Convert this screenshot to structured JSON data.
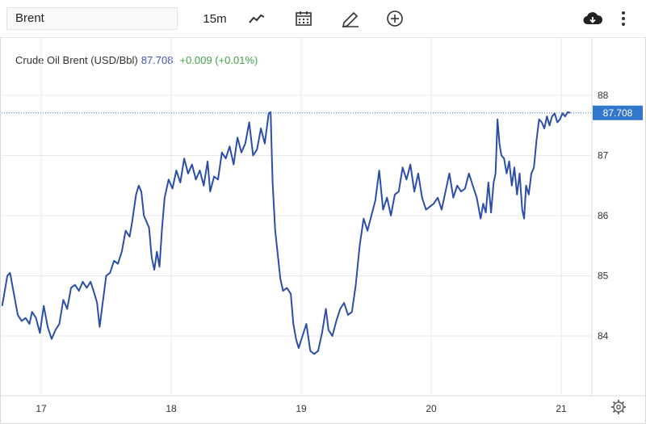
{
  "toolbar": {
    "symbol": "Brent",
    "interval": "15m",
    "icons": [
      "line-chart-icon",
      "calendar-icon",
      "draw-pencil-icon",
      "add-circle-icon",
      "download-cloud-icon",
      "more-vertical-icon",
      "settings-gear-icon"
    ]
  },
  "legend": {
    "name": "Crude Oil Brent (USD/Bbl)",
    "price": "87.708",
    "change": "+0.009 (+0.01%)"
  },
  "colors": {
    "line": "#2b4ea8",
    "price_tag": "#3377cc",
    "change_up": "#43a047",
    "grid": "#e9e9e9"
  },
  "chart_data": {
    "type": "line",
    "title": "Crude Oil Brent (USD/Bbl)",
    "xlabel": "",
    "ylabel": "",
    "x_ticks": [
      "17",
      "18",
      "19",
      "20",
      "21"
    ],
    "y_ticks": [
      "84",
      "85",
      "86",
      "87",
      "88"
    ],
    "ylim": [
      83.35,
      88.25
    ],
    "xlim": [
      16.7,
      21.25
    ],
    "last_price": "87.708",
    "grid": true,
    "series": [
      {
        "values": [
          [
            16.7,
            84.5
          ],
          [
            16.74,
            85.0
          ],
          [
            16.76,
            85.05
          ],
          [
            16.79,
            84.7
          ],
          [
            16.82,
            84.35
          ],
          [
            16.85,
            84.25
          ],
          [
            16.88,
            84.3
          ],
          [
            16.91,
            84.2
          ],
          [
            16.93,
            84.4
          ],
          [
            16.96,
            84.3
          ],
          [
            16.99,
            84.05
          ],
          [
            17.02,
            84.5
          ],
          [
            17.05,
            84.15
          ],
          [
            17.08,
            83.95
          ],
          [
            17.11,
            84.1
          ],
          [
            17.14,
            84.2
          ],
          [
            17.17,
            84.6
          ],
          [
            17.2,
            84.45
          ],
          [
            17.23,
            84.8
          ],
          [
            17.26,
            84.85
          ],
          [
            17.29,
            84.75
          ],
          [
            17.32,
            84.9
          ],
          [
            17.35,
            84.8
          ],
          [
            17.38,
            84.9
          ],
          [
            17.41,
            84.7
          ],
          [
            17.43,
            84.55
          ],
          [
            17.45,
            84.15
          ],
          [
            17.47,
            84.5
          ],
          [
            17.5,
            85.0
          ],
          [
            17.53,
            85.05
          ],
          [
            17.56,
            85.25
          ],
          [
            17.59,
            85.2
          ],
          [
            17.62,
            85.4
          ],
          [
            17.65,
            85.75
          ],
          [
            17.68,
            85.65
          ],
          [
            17.7,
            85.9
          ],
          [
            17.73,
            86.35
          ],
          [
            17.75,
            86.5
          ],
          [
            17.77,
            86.4
          ],
          [
            17.79,
            86.0
          ],
          [
            17.81,
            85.9
          ],
          [
            17.83,
            85.8
          ],
          [
            17.85,
            85.3
          ],
          [
            17.87,
            85.1
          ],
          [
            17.89,
            85.4
          ],
          [
            17.91,
            85.15
          ],
          [
            17.93,
            85.8
          ],
          [
            17.95,
            86.3
          ],
          [
            17.98,
            86.6
          ],
          [
            18.01,
            86.45
          ],
          [
            18.04,
            86.75
          ],
          [
            18.07,
            86.55
          ],
          [
            18.1,
            86.95
          ],
          [
            18.13,
            86.7
          ],
          [
            18.16,
            86.85
          ],
          [
            18.19,
            86.6
          ],
          [
            18.22,
            86.75
          ],
          [
            18.25,
            86.5
          ],
          [
            18.28,
            86.9
          ],
          [
            18.3,
            86.4
          ],
          [
            18.33,
            86.65
          ],
          [
            18.36,
            86.6
          ],
          [
            18.39,
            87.05
          ],
          [
            18.42,
            86.95
          ],
          [
            18.45,
            87.15
          ],
          [
            18.48,
            86.85
          ],
          [
            18.51,
            87.3
          ],
          [
            18.54,
            87.05
          ],
          [
            18.57,
            87.2
          ],
          [
            18.6,
            87.55
          ],
          [
            18.63,
            87.0
          ],
          [
            18.66,
            87.1
          ],
          [
            18.69,
            87.45
          ],
          [
            18.72,
            87.2
          ],
          [
            18.75,
            87.7
          ],
          [
            18.765,
            87.72
          ],
          [
            18.77,
            87.3
          ],
          [
            18.78,
            86.55
          ],
          [
            18.8,
            85.75
          ],
          [
            18.82,
            85.35
          ],
          [
            18.84,
            84.95
          ],
          [
            18.86,
            84.75
          ],
          [
            18.89,
            84.8
          ],
          [
            18.92,
            84.7
          ],
          [
            18.94,
            84.2
          ],
          [
            18.96,
            83.95
          ],
          [
            18.98,
            83.8
          ],
          [
            19.01,
            84.0
          ],
          [
            19.04,
            84.2
          ],
          [
            19.07,
            83.75
          ],
          [
            19.1,
            83.7
          ],
          [
            19.13,
            83.75
          ],
          [
            19.16,
            84.05
          ],
          [
            19.19,
            84.45
          ],
          [
            19.21,
            84.1
          ],
          [
            19.24,
            84.0
          ],
          [
            19.27,
            84.25
          ],
          [
            19.3,
            84.45
          ],
          [
            19.33,
            84.55
          ],
          [
            19.36,
            84.35
          ],
          [
            19.39,
            84.4
          ],
          [
            19.42,
            84.85
          ],
          [
            19.45,
            85.5
          ],
          [
            19.48,
            85.95
          ],
          [
            19.51,
            85.75
          ],
          [
            19.54,
            86.0
          ],
          [
            19.57,
            86.25
          ],
          [
            19.6,
            86.75
          ],
          [
            19.63,
            86.1
          ],
          [
            19.66,
            86.3
          ],
          [
            19.69,
            86.0
          ],
          [
            19.72,
            86.35
          ],
          [
            19.75,
            86.4
          ],
          [
            19.78,
            86.8
          ],
          [
            19.81,
            86.6
          ],
          [
            19.84,
            86.85
          ],
          [
            19.87,
            86.4
          ],
          [
            19.9,
            86.7
          ],
          [
            19.93,
            86.3
          ],
          [
            19.96,
            86.1
          ],
          [
            19.99,
            86.15
          ],
          [
            20.02,
            86.2
          ],
          [
            20.05,
            86.3
          ],
          [
            20.08,
            86.1
          ],
          [
            20.11,
            86.4
          ],
          [
            20.14,
            86.7
          ],
          [
            20.17,
            86.3
          ],
          [
            20.2,
            86.5
          ],
          [
            20.23,
            86.4
          ],
          [
            20.26,
            86.45
          ],
          [
            20.29,
            86.7
          ],
          [
            20.32,
            86.5
          ],
          [
            20.35,
            86.3
          ],
          [
            20.38,
            85.95
          ],
          [
            20.4,
            86.2
          ],
          [
            20.42,
            86.05
          ],
          [
            20.44,
            86.55
          ],
          [
            20.46,
            86.05
          ],
          [
            20.48,
            86.55
          ],
          [
            20.495,
            86.7
          ],
          [
            20.51,
            87.6
          ],
          [
            20.525,
            87.2
          ],
          [
            20.54,
            87.0
          ],
          [
            20.56,
            86.95
          ],
          [
            20.58,
            86.7
          ],
          [
            20.6,
            86.9
          ],
          [
            20.62,
            86.5
          ],
          [
            20.64,
            86.8
          ],
          [
            20.66,
            86.35
          ],
          [
            20.68,
            86.7
          ],
          [
            20.7,
            86.1
          ],
          [
            20.715,
            85.95
          ],
          [
            20.73,
            86.5
          ],
          [
            20.75,
            86.35
          ],
          [
            20.77,
            86.7
          ],
          [
            20.79,
            86.8
          ],
          [
            20.81,
            87.25
          ],
          [
            20.83,
            87.6
          ],
          [
            20.85,
            87.55
          ],
          [
            20.87,
            87.45
          ],
          [
            20.89,
            87.65
          ],
          [
            20.91,
            87.5
          ],
          [
            20.93,
            87.65
          ],
          [
            20.95,
            87.7
          ],
          [
            20.97,
            87.55
          ],
          [
            20.99,
            87.6
          ],
          [
            21.01,
            87.7
          ],
          [
            21.03,
            87.65
          ],
          [
            21.05,
            87.72
          ],
          [
            21.07,
            87.71
          ]
        ]
      }
    ]
  }
}
